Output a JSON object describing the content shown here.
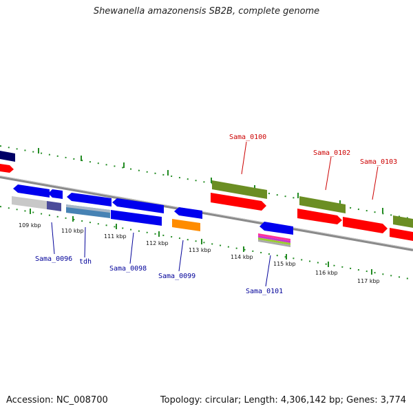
{
  "title": "Shewanella amazonensis SB2B, complete genome",
  "footer": {
    "accession": "Accession: NC_008700",
    "summary": "Topology: circular; Length: 4,306,142 bp; Genes: 3,774"
  },
  "colors": {
    "forward_gene": "#ff0000",
    "forward_cds_marker": "#6b8e23",
    "reverse_gene": "#0000ff",
    "backbone": "#888888",
    "tick": "#228b22",
    "label_forward": "#cc0000",
    "label_reverse": "#000099"
  },
  "scale_labels": [
    "109 kbp",
    "110 kbp",
    "111 kbp",
    "112 kbp",
    "113 kbp",
    "114 kbp",
    "115 kbp",
    "116 kbp",
    "117 kbp"
  ],
  "gene_labels_forward": [
    "Sama_0100",
    "Sama_0102",
    "Sama_0103"
  ],
  "gene_labels_reverse": [
    "Sama_0096",
    "tdh",
    "Sama_0098",
    "Sama_0099",
    "Sama_0101"
  ]
}
